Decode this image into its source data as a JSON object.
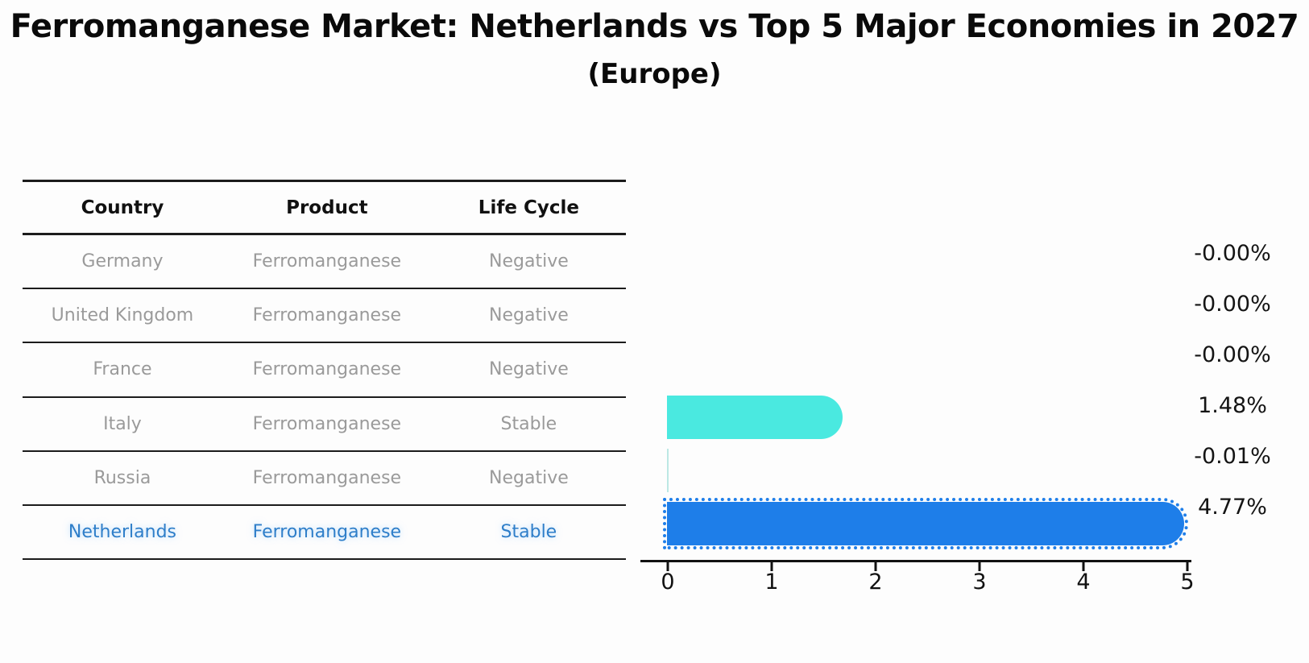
{
  "title": "Ferromanganese Market: Netherlands vs Top 5 Major Economies in 2027",
  "subtitle": "(Europe)",
  "table": {
    "headers": [
      "Country",
      "Product",
      "Life Cycle"
    ],
    "rows": [
      {
        "country": "Germany",
        "product": "Ferromanganese",
        "life_cycle": "Negative",
        "highlighted": false
      },
      {
        "country": "United Kingdom",
        "product": "Ferromanganese",
        "life_cycle": "Negative",
        "highlighted": false
      },
      {
        "country": "France",
        "product": "Ferromanganese",
        "life_cycle": "Negative",
        "highlighted": false
      },
      {
        "country": "Italy",
        "product": "Ferromanganese",
        "life_cycle": "Stable",
        "highlighted": false
      },
      {
        "country": "Russia",
        "product": "Ferromanganese",
        "life_cycle": "Negative",
        "highlighted": false
      },
      {
        "country": "Netherlands",
        "product": "Ferromanganese",
        "life_cycle": "Stable",
        "highlighted": true
      }
    ]
  },
  "chart_data": {
    "type": "bar",
    "orientation": "horizontal",
    "title": "Ferromanganese Market: Netherlands vs Top 5 Major Economies in 2027 (Europe)",
    "categories": [
      "Germany",
      "United Kingdom",
      "France",
      "Italy",
      "Russia",
      "Netherlands"
    ],
    "values": [
      -0.0,
      -0.0,
      -0.0,
      1.48,
      -0.01,
      4.77
    ],
    "value_labels": [
      "-0.00%",
      "-0.00%",
      "-0.00%",
      "1.48%",
      "-0.01%",
      "4.77%"
    ],
    "unit": "percent CAGR",
    "xlim": [
      0,
      5
    ],
    "x_ticks": [
      "0",
      "1",
      "2",
      "3",
      "4",
      "5"
    ],
    "grid": false,
    "legend": "none",
    "highlight_index": 5
  },
  "colors": {
    "default_bar": "#4ae9e0",
    "highlight_bar": "#1e7ee9",
    "tiny_bar": "#bce8e4",
    "axis": "#111111",
    "value_label_text": "#141414",
    "header_text": "#111111",
    "row_text": "#9a9a9a",
    "highlight_text": "#2e7ec9",
    "table_line": "#1c1c1c"
  }
}
